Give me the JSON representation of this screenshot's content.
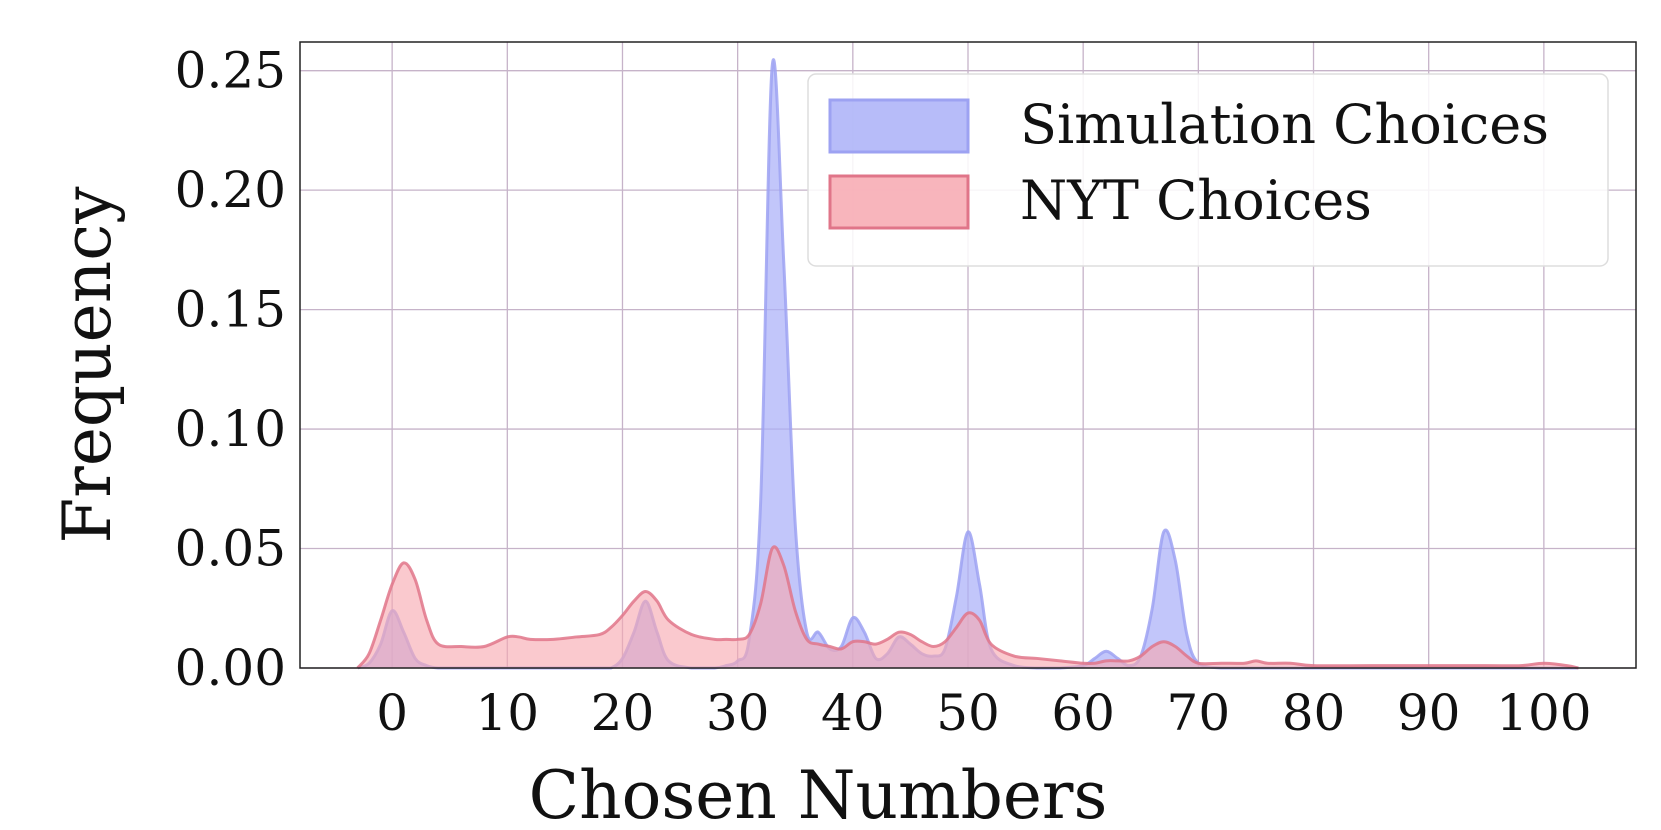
{
  "chart_data": {
    "type": "area",
    "xlabel": "Chosen Numbers",
    "ylabel": "Frequency",
    "xlim": [
      -8,
      108
    ],
    "ylim": [
      0,
      0.262
    ],
    "x_ticks": [
      0,
      10,
      20,
      30,
      40,
      50,
      60,
      70,
      80,
      90,
      100
    ],
    "x_tick_labels": [
      "0",
      "10",
      "20",
      "30",
      "40",
      "50",
      "60",
      "70",
      "80",
      "90",
      "100"
    ],
    "y_ticks": [
      0.0,
      0.05,
      0.1,
      0.15,
      0.2,
      0.25
    ],
    "y_tick_labels": [
      "0.00",
      "0.05",
      "0.10",
      "0.15",
      "0.20",
      "0.25"
    ],
    "grid": true,
    "legend_position": "top-right",
    "x": [
      -3,
      -2,
      -1,
      0,
      1,
      2,
      3,
      4,
      6,
      8,
      10,
      11,
      12,
      14,
      16,
      18,
      19,
      20,
      21,
      22,
      23,
      24,
      26,
      28,
      29,
      30,
      31,
      32,
      33,
      34,
      35,
      36,
      37,
      38,
      39,
      40,
      41,
      42,
      43,
      44,
      45,
      46,
      47,
      48,
      49,
      50,
      51,
      52,
      54,
      56,
      58,
      60,
      61,
      62,
      63,
      64,
      65,
      66,
      67,
      68,
      69,
      70,
      72,
      74,
      75,
      76,
      78,
      80,
      85,
      90,
      95,
      98,
      100,
      102,
      103
    ],
    "series": [
      {
        "name": "Simulation Choices",
        "color": "#aab0f8",
        "values": [
          0,
          0.002,
          0.01,
          0.024,
          0.015,
          0.004,
          0.001,
          0,
          0,
          0,
          0,
          0,
          0,
          0,
          0,
          0,
          0,
          0.004,
          0.015,
          0.028,
          0.015,
          0.003,
          0,
          0,
          0.001,
          0.003,
          0.012,
          0.07,
          0.252,
          0.17,
          0.06,
          0.015,
          0.015,
          0.008,
          0.009,
          0.021,
          0.015,
          0.004,
          0.006,
          0.013,
          0.01,
          0.006,
          0.005,
          0.008,
          0.03,
          0.057,
          0.035,
          0.008,
          0.001,
          0,
          0,
          0.001,
          0.004,
          0.007,
          0.004,
          0.001,
          0.005,
          0.025,
          0.057,
          0.045,
          0.014,
          0.002,
          0,
          0,
          0,
          0,
          0,
          0,
          0,
          0,
          0,
          0,
          0,
          0,
          0
        ]
      },
      {
        "name": "NYT Choices",
        "color": "#f7a8b0",
        "values": [
          0,
          0.006,
          0.02,
          0.035,
          0.044,
          0.037,
          0.02,
          0.01,
          0.009,
          0.009,
          0.013,
          0.013,
          0.012,
          0.012,
          0.013,
          0.014,
          0.017,
          0.022,
          0.028,
          0.032,
          0.028,
          0.02,
          0.014,
          0.012,
          0.012,
          0.012,
          0.014,
          0.027,
          0.05,
          0.043,
          0.024,
          0.012,
          0.01,
          0.009,
          0.008,
          0.011,
          0.011,
          0.01,
          0.012,
          0.015,
          0.014,
          0.011,
          0.009,
          0.011,
          0.017,
          0.023,
          0.02,
          0.01,
          0.005,
          0.004,
          0.003,
          0.002,
          0.002,
          0.003,
          0.003,
          0.003,
          0.005,
          0.009,
          0.011,
          0.009,
          0.005,
          0.002,
          0.002,
          0.002,
          0.003,
          0.002,
          0.002,
          0.001,
          0.001,
          0.001,
          0.001,
          0.001,
          0.002,
          0.001,
          0
        ]
      }
    ]
  }
}
